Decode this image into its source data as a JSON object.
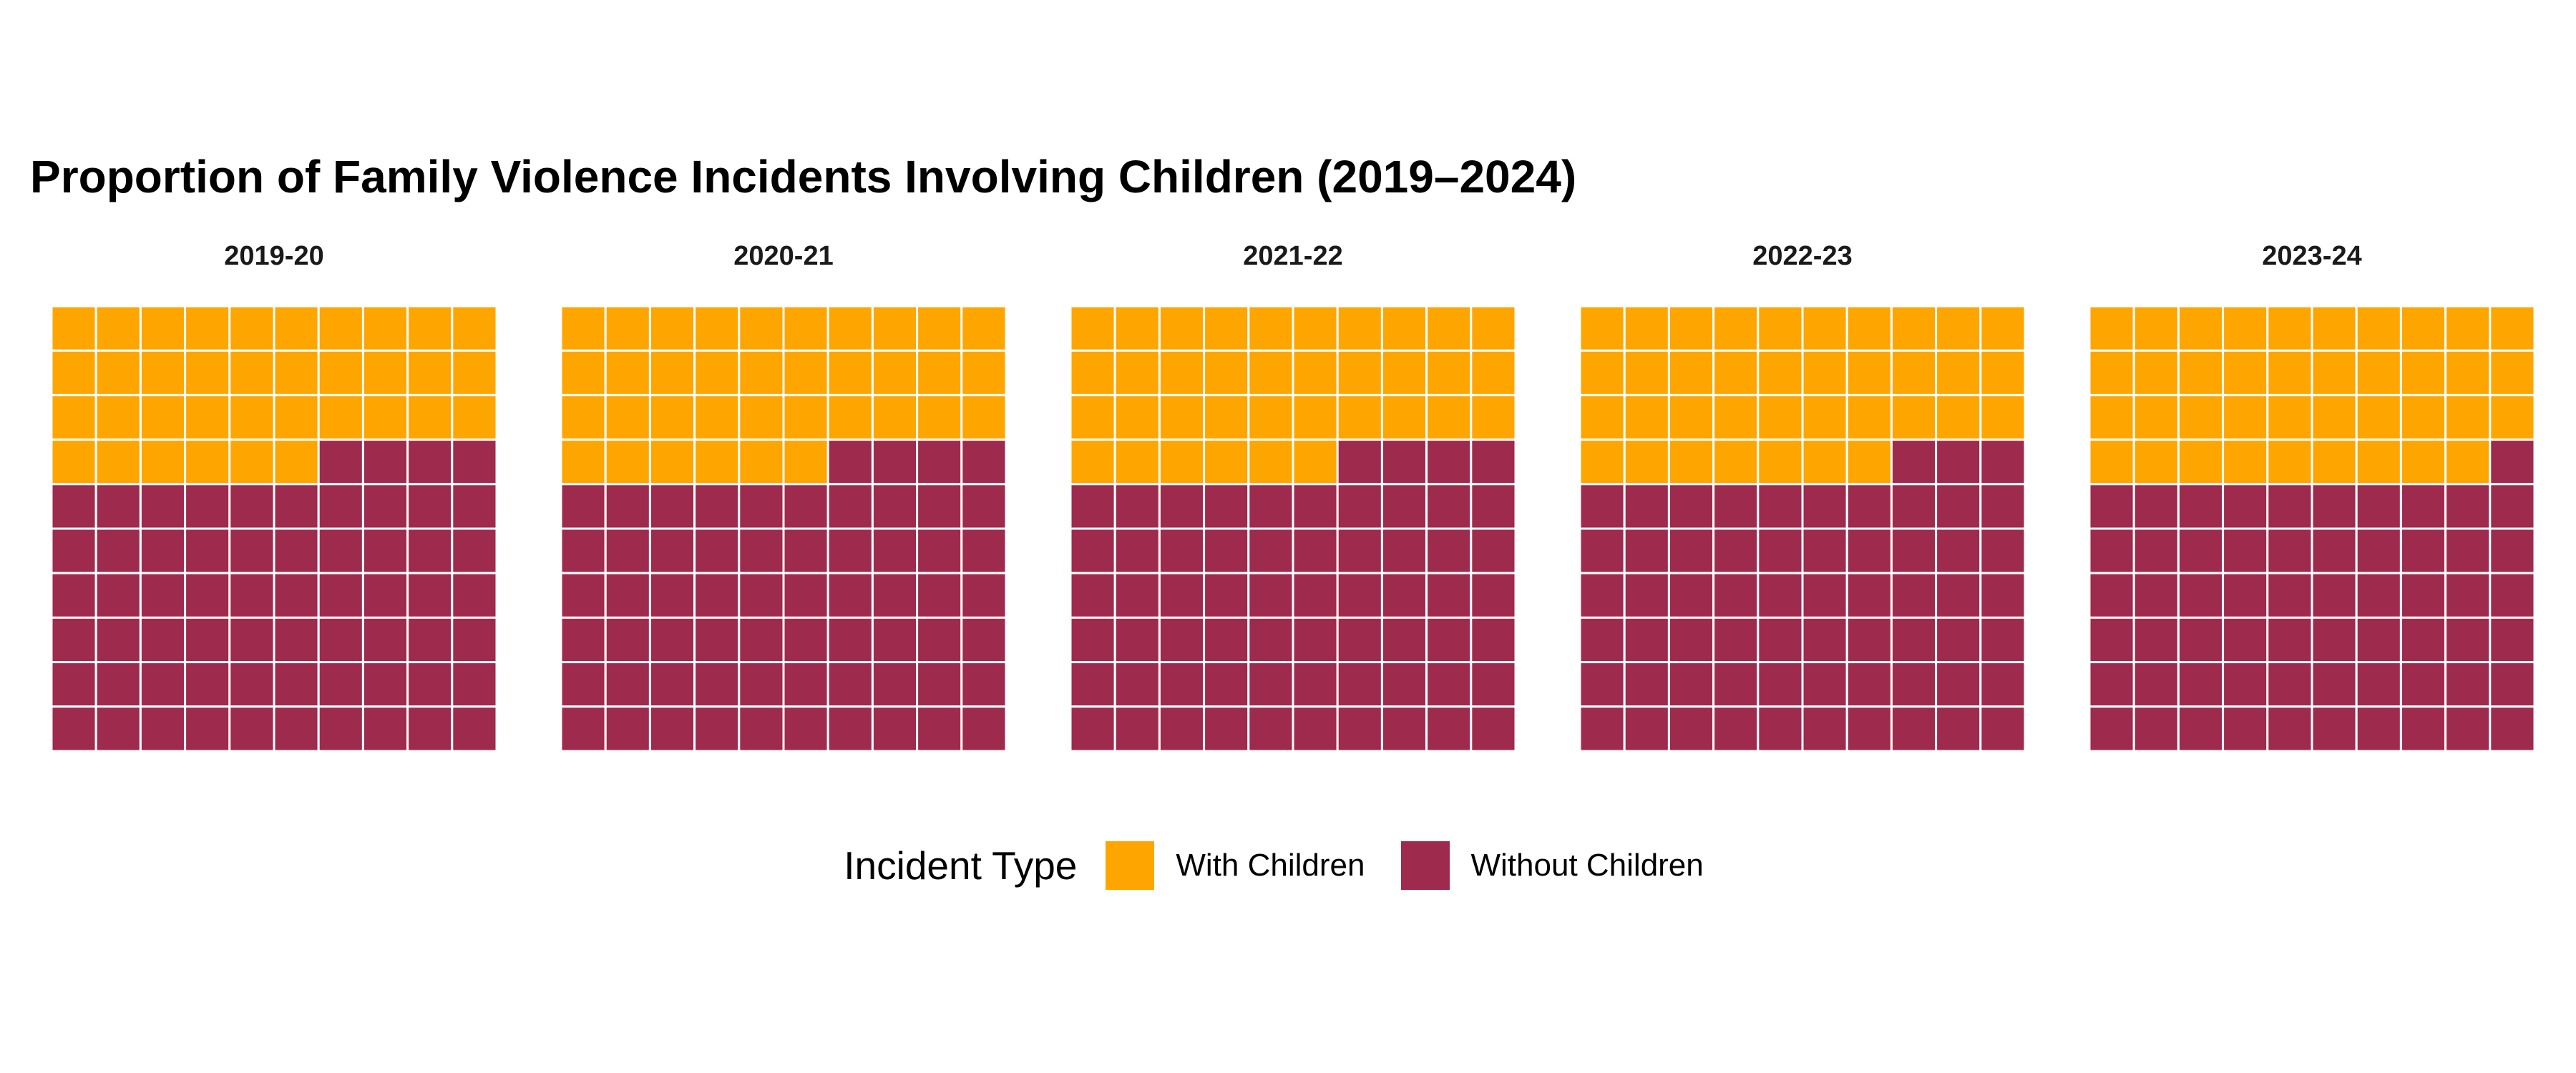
{
  "chart_data": {
    "type": "waffle",
    "title": "Proportion of Family Violence Incidents Involving Children (2019–2024)",
    "grid": {
      "rows": 10,
      "cols": 10,
      "total_squares": 100
    },
    "categories": [
      "2019-20",
      "2020-21",
      "2021-22",
      "2022-23",
      "2023-24"
    ],
    "series": [
      {
        "name": "With Children",
        "values": [
          36,
          36,
          36,
          37,
          39
        ]
      },
      {
        "name": "Without Children",
        "values": [
          64,
          64,
          64,
          63,
          61
        ]
      }
    ],
    "legend": {
      "title": "Incident Type",
      "placement": "bottom",
      "entries": [
        "With Children",
        "Without Children"
      ]
    },
    "colors": {
      "With Children": "#FFA500",
      "Without Children": "#9E2A4E"
    }
  }
}
